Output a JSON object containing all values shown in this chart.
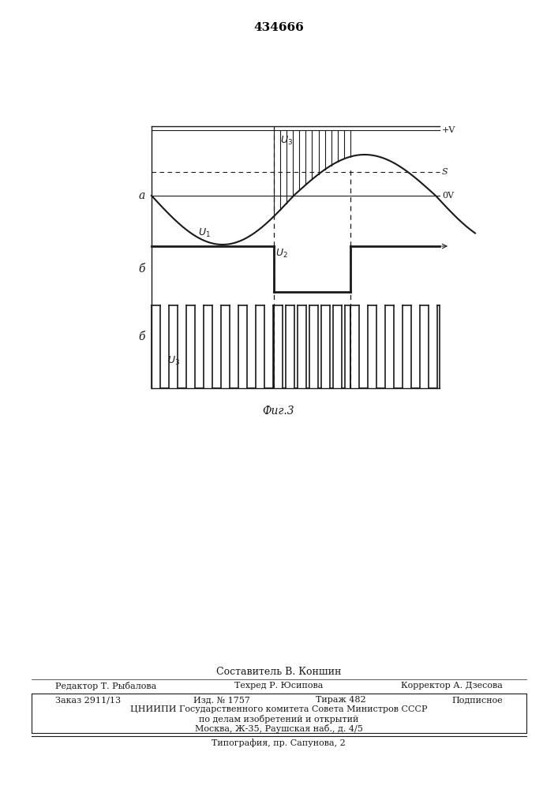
{
  "title": "434666",
  "fig_caption": "Фиг.3",
  "background_color": "#ffffff",
  "line_color": "#1a1a1a",
  "panel_label_a": "а",
  "panel_label_b": "б",
  "panel_label_c": "б",
  "footer": {
    "compiler": "Составитель В. Коншин",
    "editor": "Редактор Т. Рыбалова",
    "tech": "Техред Р. Юсипова",
    "corrector": "Корректор А. Дзесова",
    "order": "Заказ 2911/13",
    "issue": "Изд. № 1757",
    "copies": "Тираж 482",
    "subscription": "Подписное",
    "org1": "ЦНИИПИ Государственного комитета Совета Министров СССР",
    "org2": "по делам изобретений и открытий",
    "org3": "Москва, Ж-35, Раушская наб., д. 4/5",
    "print": "Типография, пр. Сапунова, 2"
  }
}
